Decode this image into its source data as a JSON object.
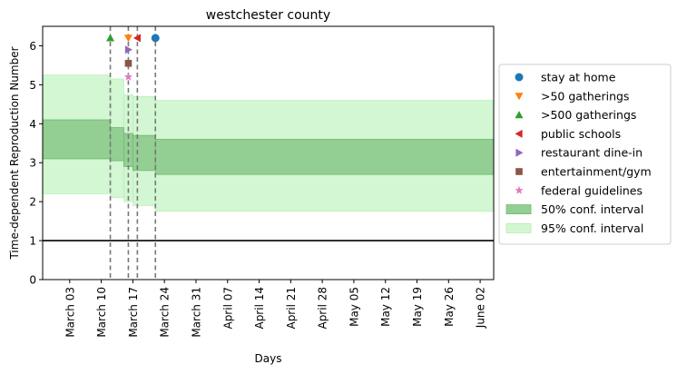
{
  "chart_data": {
    "type": "area",
    "title": "westchester county",
    "xlabel": "Days",
    "ylabel": "Time-dependent Reproduction Number",
    "x_start": "2020-02-26",
    "x_end": "2020-06-05",
    "ylim": [
      0,
      6.5
    ],
    "yticks": [
      0,
      1,
      2,
      3,
      4,
      5,
      6
    ],
    "xtick_labels": [
      "March 03",
      "March 10",
      "March 17",
      "March 24",
      "March 31",
      "April 07",
      "April 14",
      "April 21",
      "April 28",
      "May 05",
      "May 12",
      "May 19",
      "May 26",
      "June 02"
    ],
    "xtick_dates": [
      "2020-03-03",
      "2020-03-10",
      "2020-03-17",
      "2020-03-24",
      "2020-03-31",
      "2020-04-07",
      "2020-04-14",
      "2020-04-21",
      "2020-04-28",
      "2020-05-05",
      "2020-05-12",
      "2020-05-19",
      "2020-05-26",
      "2020-06-02"
    ],
    "reference_line": 1,
    "intervals_50": [
      {
        "x0": "2020-02-26",
        "x1": "2020-03-12",
        "lo": 3.1,
        "hi": 4.1
      },
      {
        "x0": "2020-03-12",
        "x1": "2020-03-15",
        "lo": 3.05,
        "hi": 3.9
      },
      {
        "x0": "2020-03-15",
        "x1": "2020-03-17",
        "lo": 2.9,
        "hi": 3.75
      },
      {
        "x0": "2020-03-17",
        "x1": "2020-03-22",
        "lo": 2.8,
        "hi": 3.7
      },
      {
        "x0": "2020-03-22",
        "x1": "2020-06-05",
        "lo": 2.7,
        "hi": 3.6
      }
    ],
    "intervals_95": [
      {
        "x0": "2020-02-26",
        "x1": "2020-03-12",
        "lo": 2.2,
        "hi": 5.25
      },
      {
        "x0": "2020-03-12",
        "x1": "2020-03-15",
        "lo": 2.1,
        "hi": 5.15
      },
      {
        "x0": "2020-03-15",
        "x1": "2020-03-17",
        "lo": 2.0,
        "hi": 4.75
      },
      {
        "x0": "2020-03-17",
        "x1": "2020-03-22",
        "lo": 1.9,
        "hi": 4.7
      },
      {
        "x0": "2020-03-22",
        "x1": "2020-06-05",
        "lo": 1.75,
        "hi": 4.6
      }
    ],
    "interventions": [
      {
        "name": "stay at home",
        "date": "2020-03-22",
        "y": 6.2,
        "marker": "circle",
        "color": "#1f77b4"
      },
      {
        "name": ">50 gatherings",
        "date": "2020-03-16",
        "y": 6.2,
        "marker": "triangle-down",
        "color": "#ff7f0e"
      },
      {
        "name": ">500 gatherings",
        "date": "2020-03-12",
        "y": 6.2,
        "marker": "triangle-up",
        "color": "#2ca02c"
      },
      {
        "name": "public schools",
        "date": "2020-03-18",
        "y": 6.2,
        "marker": "triangle-left",
        "color": "#d62728"
      },
      {
        "name": "restaurant dine-in",
        "date": "2020-03-16",
        "y": 5.9,
        "marker": "triangle-right",
        "color": "#9467bd"
      },
      {
        "name": "entertainment/gym",
        "date": "2020-03-16",
        "y": 5.55,
        "marker": "square",
        "color": "#8c564b"
      },
      {
        "name": "federal guidelines",
        "date": "2020-03-16",
        "y": 5.2,
        "marker": "star",
        "color": "#e377c2"
      }
    ],
    "intervention_lines": [
      "2020-03-12",
      "2020-03-16",
      "2020-03-18",
      "2020-03-22"
    ],
    "legend": {
      "placement": "right",
      "entries": [
        {
          "label": "stay at home",
          "marker": "circle",
          "color": "#1f77b4"
        },
        {
          "label": ">50 gatherings",
          "marker": "triangle-down",
          "color": "#ff7f0e"
        },
        {
          "label": ">500 gatherings",
          "marker": "triangle-up",
          "color": "#2ca02c"
        },
        {
          "label": "public schools",
          "marker": "triangle-left",
          "color": "#d62728"
        },
        {
          "label": "restaurant dine-in",
          "marker": "triangle-right",
          "color": "#9467bd"
        },
        {
          "label": "entertainment/gym",
          "marker": "square",
          "color": "#8c564b"
        },
        {
          "label": "federal guidelines",
          "marker": "star",
          "color": "#e377c2"
        },
        {
          "label": "50% conf. interval",
          "marker": "patch",
          "color": "#93cf93"
        },
        {
          "label": "95% conf. interval",
          "marker": "patch",
          "color": "#d2f7d2"
        }
      ]
    },
    "colors": {
      "ci50_fill": "#93cf93",
      "ci50_edge": "#6db86d",
      "ci95_fill": "#d2f7d2",
      "ci95_edge": "#b4ebb4",
      "vline": "#777777",
      "reference_line": "#000000"
    }
  }
}
